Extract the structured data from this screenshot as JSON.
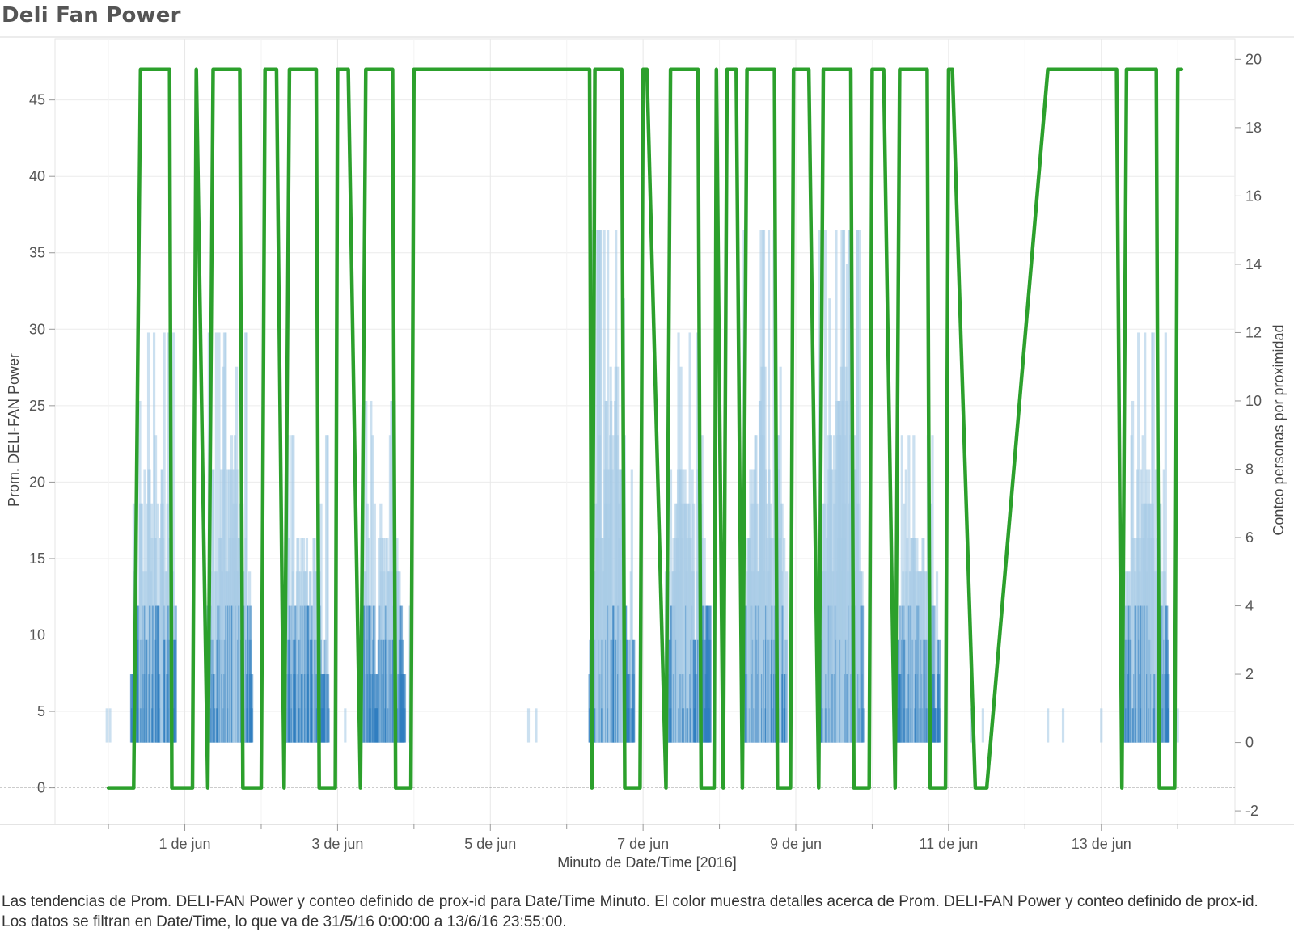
{
  "title": "Deli Fan Power",
  "caption": "Las tendencias de Prom. DELI-FAN Power y conteo definido de prox-id para Date/Time Minuto.  El color muestra detalles acerca de Prom. DELI-FAN Power y conteo definido de prox-id. Los datos se filtran en Date/Time, lo que va de 31/5/16 0:00:00 a 13/6/16 23:55:00.",
  "chart_data": {
    "type": "line",
    "xlabel": "Minuto de Date/Time [2016]",
    "ylabel": "Prom. DELI-FAN Power",
    "y2label": "Conteo personas por proximidad",
    "x_unit": "days since 31/5/16 0:00",
    "xlim": [
      -0.7,
      14.75
    ],
    "ylim": [
      -2.4,
      49
    ],
    "y2lim": [
      -2.4,
      20.6
    ],
    "x_ticks": [
      {
        "x": 1,
        "label": "1 de jun"
      },
      {
        "x": 3,
        "label": "3 de jun"
      },
      {
        "x": 5,
        "label": "5 de jun"
      },
      {
        "x": 7,
        "label": "7 de jun"
      },
      {
        "x": 9,
        "label": "9 de jun"
      },
      {
        "x": 11,
        "label": "11 de jun"
      },
      {
        "x": 13,
        "label": "13 de jun"
      }
    ],
    "y_ticks": [
      0,
      5,
      10,
      15,
      20,
      25,
      30,
      35,
      40,
      45
    ],
    "y2_ticks": [
      -2,
      0,
      2,
      4,
      6,
      8,
      10,
      12,
      14,
      16,
      18,
      20
    ],
    "colors": {
      "power": "#2ca02c",
      "count_dark": "#2f7dc0",
      "count_light": "#a9cbe6",
      "zero_line": "#333333"
    },
    "power_series": {
      "name": "Prom. DELI-FAN Power",
      "points": [
        [
          0,
          0
        ],
        [
          0.33,
          0
        ],
        [
          0.42,
          47
        ],
        [
          0.8,
          47
        ],
        [
          0.83,
          0
        ],
        [
          1.1,
          0
        ],
        [
          1.15,
          47
        ],
        [
          1.3,
          0
        ],
        [
          1.37,
          47
        ],
        [
          1.72,
          47
        ],
        [
          1.76,
          0
        ],
        [
          2.0,
          0
        ],
        [
          2.05,
          47
        ],
        [
          2.2,
          47
        ],
        [
          2.3,
          0
        ],
        [
          2.37,
          47
        ],
        [
          2.72,
          47
        ],
        [
          2.76,
          0
        ],
        [
          2.97,
          0
        ],
        [
          3.0,
          47
        ],
        [
          3.14,
          47
        ],
        [
          3.3,
          0
        ],
        [
          3.37,
          47
        ],
        [
          3.72,
          47
        ],
        [
          3.76,
          0
        ],
        [
          3.96,
          0
        ],
        [
          4.0,
          47
        ],
        [
          6.3,
          47
        ],
        [
          6.33,
          0
        ],
        [
          6.37,
          47
        ],
        [
          6.72,
          47
        ],
        [
          6.76,
          0
        ],
        [
          6.96,
          0
        ],
        [
          7.0,
          47
        ],
        [
          7.05,
          47
        ],
        [
          7.3,
          0
        ],
        [
          7.36,
          47
        ],
        [
          7.72,
          47
        ],
        [
          7.76,
          0
        ],
        [
          7.93,
          0
        ],
        [
          7.96,
          47
        ],
        [
          8.05,
          0
        ],
        [
          8.1,
          47
        ],
        [
          8.22,
          47
        ],
        [
          8.3,
          0
        ],
        [
          8.36,
          47
        ],
        [
          8.72,
          47
        ],
        [
          8.76,
          0
        ],
        [
          8.93,
          0
        ],
        [
          8.97,
          47
        ],
        [
          9.17,
          47
        ],
        [
          9.3,
          0
        ],
        [
          9.36,
          47
        ],
        [
          9.72,
          47
        ],
        [
          9.76,
          0
        ],
        [
          9.96,
          0
        ],
        [
          10.0,
          47
        ],
        [
          10.15,
          47
        ],
        [
          10.3,
          0
        ],
        [
          10.36,
          47
        ],
        [
          10.72,
          47
        ],
        [
          10.76,
          0
        ],
        [
          10.96,
          0
        ],
        [
          11.0,
          47
        ],
        [
          11.05,
          47
        ],
        [
          11.35,
          0
        ],
        [
          11.5,
          0
        ],
        [
          12.3,
          47
        ],
        [
          13.2,
          47
        ],
        [
          13.27,
          0
        ],
        [
          13.33,
          47
        ],
        [
          13.72,
          47
        ],
        [
          13.76,
          0
        ],
        [
          13.96,
          0
        ],
        [
          14.0,
          47
        ],
        [
          14.05,
          47
        ]
      ]
    },
    "count_series": {
      "name": "Conteo personas por proximidad",
      "clusters": [
        {
          "start": 0.3,
          "end": 0.88,
          "peak": 12
        },
        {
          "start": 1.3,
          "end": 1.88,
          "peak": 12
        },
        {
          "start": 2.3,
          "end": 2.88,
          "peak": 9
        },
        {
          "start": 3.3,
          "end": 3.88,
          "peak": 10
        },
        {
          "start": 6.3,
          "end": 6.88,
          "peak": 15
        },
        {
          "start": 7.3,
          "end": 7.88,
          "peak": 12
        },
        {
          "start": 8.3,
          "end": 8.88,
          "peak": 15
        },
        {
          "start": 9.3,
          "end": 9.88,
          "peak": 15
        },
        {
          "start": 10.3,
          "end": 10.88,
          "peak": 9
        },
        {
          "start": 13.3,
          "end": 13.88,
          "peak": 12
        }
      ],
      "sparse": [
        [
          -0.02,
          1
        ],
        [
          0.02,
          1
        ],
        [
          1.1,
          1
        ],
        [
          2.0,
          1
        ],
        [
          3.1,
          1
        ],
        [
          3.95,
          4
        ],
        [
          5.5,
          1
        ],
        [
          5.6,
          1
        ],
        [
          11.3,
          1
        ],
        [
          11.45,
          1
        ],
        [
          12.3,
          1
        ],
        [
          12.5,
          1
        ],
        [
          13.0,
          1
        ],
        [
          14.0,
          1
        ]
      ]
    }
  }
}
